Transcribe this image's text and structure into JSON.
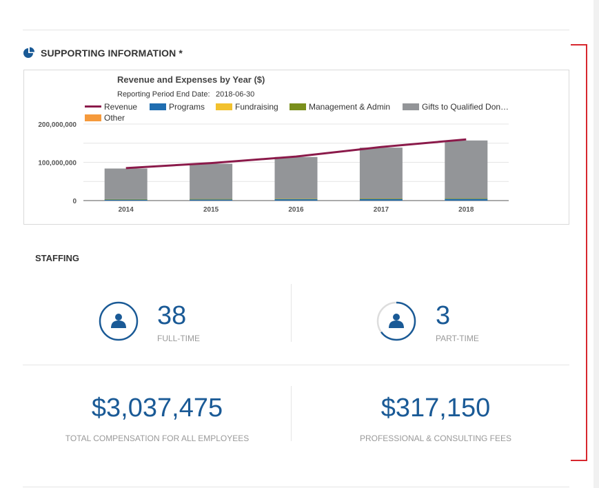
{
  "section": {
    "title": "SUPPORTING INFORMATION *",
    "icon": "pie-chart-icon"
  },
  "chart_data": {
    "type": "bar",
    "title": "Revenue and Expenses by Year ($)",
    "subtitle_label": "Reporting Period End Date:",
    "subtitle_value": "2018-06-30",
    "categories": [
      "2014",
      "2015",
      "2016",
      "2017",
      "2018"
    ],
    "y_ticks": [
      "0",
      "100,000,000",
      "200,000,000"
    ],
    "ylim": [
      0,
      200000000
    ],
    "grid": true,
    "legend_position": "top",
    "stacked": true,
    "series": [
      {
        "name": "Revenue",
        "kind": "line",
        "color": "#8b1a4a",
        "values": [
          85000000,
          98000000,
          115000000,
          140000000,
          160000000
        ]
      },
      {
        "name": "Programs",
        "kind": "bar",
        "color": "#1f6db0",
        "values": [
          3000000,
          3500000,
          4000000,
          4500000,
          5000000
        ]
      },
      {
        "name": "Fundraising",
        "kind": "bar",
        "color": "#f2c12e",
        "values": [
          300000,
          300000,
          350000,
          350000,
          400000
        ]
      },
      {
        "name": "Management & Admin",
        "kind": "bar",
        "color": "#7a8f1c",
        "values": [
          500000,
          500000,
          600000,
          600000,
          700000
        ]
      },
      {
        "name": "Gifts to Qualified Don…",
        "kind": "bar",
        "color": "#939598",
        "values": [
          80000000,
          92000000,
          109000000,
          133000000,
          151000000
        ]
      },
      {
        "name": "Other",
        "kind": "bar",
        "color": "#f59a3c",
        "values": [
          0,
          0,
          0,
          0,
          0
        ]
      }
    ]
  },
  "staffing": {
    "title": "STAFFING",
    "full_time": {
      "value": "38",
      "label": "FULL-TIME",
      "fraction": 1.0,
      "icon": "person-icon"
    },
    "part_time": {
      "value": "3",
      "label": "PART-TIME",
      "fraction": 0.65,
      "icon": "person-icon"
    }
  },
  "compensation": {
    "total": {
      "value": "$3,037,475",
      "label": "TOTAL COMPENSATION FOR ALL EMPLOYEES"
    },
    "fees": {
      "value": "$317,150",
      "label": "PROFESSIONAL & CONSULTING FEES"
    }
  },
  "colors": {
    "accent": "#1a5a96",
    "bracket": "#d7262d"
  }
}
